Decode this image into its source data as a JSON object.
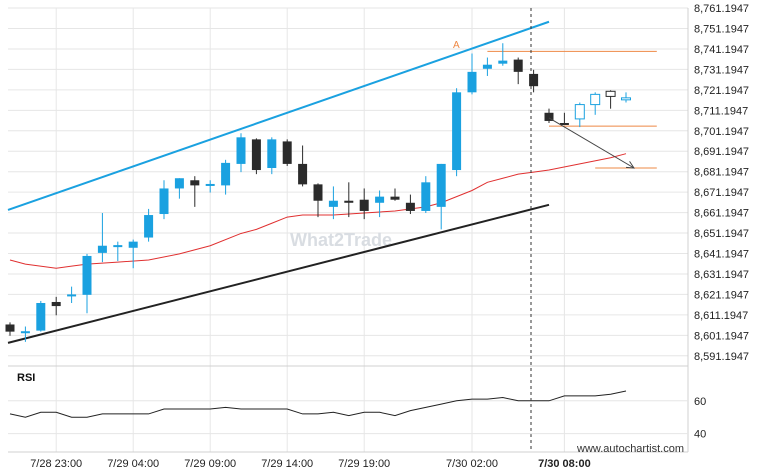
{
  "watermark": "What2Trade",
  "source": "www.autochartist.com",
  "rsi_label": "RSI",
  "colors": {
    "bull": "#1aa1e0",
    "bear": "#2b2b2b",
    "channel_upper": "#1aa1e0",
    "channel_lower": "#222222",
    "moving_average": "#e03030",
    "level_lines": "#ee8844",
    "forecast_arrow": "#444444",
    "rsi_line": "#222222",
    "grid": "#e6e6e6"
  },
  "chart_data": {
    "type": "candlestick",
    "y_ticks": [
      "8,761.1947",
      "8,751.1947",
      "8,741.1947",
      "8,731.1947",
      "8,721.1947",
      "8,711.1947",
      "8,701.1947",
      "8,691.1947",
      "8,681.1947",
      "8,671.1947",
      "8,661.1947",
      "8,651.1947",
      "8,641.1947",
      "8,631.1947",
      "8,621.1947",
      "8,611.1947",
      "8,601.1947",
      "8,591.1947"
    ],
    "x_ticks": [
      "7/28 23:00",
      "7/29 04:00",
      "7/29 09:00",
      "7/29 14:00",
      "7/29 19:00",
      "7/30 02:00",
      "7/30 08:00"
    ],
    "ylim": [
      8586.2,
      8762.2
    ],
    "pattern_marker": "A",
    "candles": [
      {
        "t": "7/28 20:00",
        "o": 8606.5,
        "h": 8607.5,
        "l": 8601.0,
        "c": 8603.0
      },
      {
        "t": "7/28 21:00",
        "o": 8603.0,
        "h": 8605.5,
        "l": 8598.0,
        "c": 8603.2
      },
      {
        "t": "7/28 22:00",
        "o": 8603.5,
        "h": 8618.0,
        "l": 8603.0,
        "c": 8617.0
      },
      {
        "t": "7/28 23:00",
        "o": 8617.5,
        "h": 8620.0,
        "l": 8611.0,
        "c": 8615.5
      },
      {
        "t": "7/29 00:00",
        "o": 8621.0,
        "h": 8625.0,
        "l": 8617.0,
        "c": 8621.2
      },
      {
        "t": "7/29 01:00",
        "o": 8621.0,
        "h": 8641.0,
        "l": 8612.0,
        "c": 8640.0
      },
      {
        "t": "7/29 02:00",
        "o": 8641.5,
        "h": 8661.0,
        "l": 8637.0,
        "c": 8645.0
      },
      {
        "t": "7/29 03:00",
        "o": 8645.0,
        "h": 8647.0,
        "l": 8637.5,
        "c": 8645.3
      },
      {
        "t": "7/29 04:00",
        "o": 8644.0,
        "h": 8648.0,
        "l": 8634.0,
        "c": 8647.0
      },
      {
        "t": "7/29 05:00",
        "o": 8649.0,
        "h": 8663.0,
        "l": 8647.0,
        "c": 8660.0
      },
      {
        "t": "7/29 06:00",
        "o": 8660.5,
        "h": 8677.0,
        "l": 8658.0,
        "c": 8673.0
      },
      {
        "t": "7/29 07:00",
        "o": 8673.0,
        "h": 8678.0,
        "l": 8668.0,
        "c": 8678.0
      },
      {
        "t": "7/29 08:00",
        "o": 8677.0,
        "h": 8679.0,
        "l": 8664.0,
        "c": 8674.5
      },
      {
        "t": "7/29 09:00",
        "o": 8675.0,
        "h": 8677.0,
        "l": 8671.0,
        "c": 8675.2
      },
      {
        "t": "7/29 10:00",
        "o": 8674.5,
        "h": 8687.0,
        "l": 8670.0,
        "c": 8685.5
      },
      {
        "t": "7/29 11:00",
        "o": 8685.0,
        "h": 8700.0,
        "l": 8681.0,
        "c": 8698.0
      },
      {
        "t": "7/29 12:00",
        "o": 8697.0,
        "h": 8697.5,
        "l": 8680.0,
        "c": 8682.0
      },
      {
        "t": "7/29 13:00",
        "o": 8683.0,
        "h": 8698.0,
        "l": 8680.0,
        "c": 8697.0
      },
      {
        "t": "7/29 14:00",
        "o": 8696.0,
        "h": 8697.0,
        "l": 8684.0,
        "c": 8685.0
      },
      {
        "t": "7/29 15:00",
        "o": 8685.0,
        "h": 8694.0,
        "l": 8674.0,
        "c": 8675.0
      },
      {
        "t": "7/29 16:00",
        "o": 8675.0,
        "h": 8675.5,
        "l": 8659.0,
        "c": 8667.0
      },
      {
        "t": "7/29 17:00",
        "o": 8664.0,
        "h": 8674.0,
        "l": 8658.0,
        "c": 8667.0
      },
      {
        "t": "7/29 18:00",
        "o": 8667.0,
        "h": 8676.0,
        "l": 8659.0,
        "c": 8666.0
      },
      {
        "t": "7/29 19:00",
        "o": 8667.5,
        "h": 8673.0,
        "l": 8658.0,
        "c": 8662.0
      },
      {
        "t": "7/29 20:00",
        "o": 8666.0,
        "h": 8672.0,
        "l": 8659.0,
        "c": 8669.0
      },
      {
        "t": "7/29 21:00",
        "o": 8669.0,
        "h": 8673.0,
        "l": 8667.0,
        "c": 8667.5
      },
      {
        "t": "7/29 22:00",
        "o": 8666.0,
        "h": 8670.0,
        "l": 8660.5,
        "c": 8662.0
      },
      {
        "t": "7/29 23:00",
        "o": 8662.0,
        "h": 8679.0,
        "l": 8661.0,
        "c": 8676.0
      },
      {
        "t": "7/30 00:00",
        "o": 8664.0,
        "h": 8685.0,
        "l": 8653.0,
        "c": 8685.0
      },
      {
        "t": "7/30 01:00",
        "o": 8682.0,
        "h": 8722.0,
        "l": 8679.0,
        "c": 8720.0
      },
      {
        "t": "7/30 02:00",
        "o": 8720.0,
        "h": 8739.0,
        "l": 8719.0,
        "c": 8730.0
      },
      {
        "t": "7/30 03:00",
        "o": 8731.5,
        "h": 8737.0,
        "l": 8728.0,
        "c": 8733.5
      },
      {
        "t": "7/30 04:00",
        "o": 8734.0,
        "h": 8744.0,
        "l": 8733.0,
        "c": 8735.5
      },
      {
        "t": "7/30 05:00",
        "o": 8736.0,
        "h": 8737.0,
        "l": 8724.0,
        "c": 8730.0
      },
      {
        "t": "7/30 06:00",
        "o": 8729.0,
        "h": 8731.0,
        "l": 8720.0,
        "c": 8723.0
      },
      {
        "t": "7/30 07:00",
        "o": 8710.0,
        "h": 8712.0,
        "l": 8705.0,
        "c": 8706.0
      },
      {
        "t": "7/30 08:00",
        "o": 8705.0,
        "h": 8710.0,
        "l": 8704.0,
        "c": 8704.5
      },
      {
        "t": "7/30 09:00",
        "o": 8707.0,
        "h": 8715.0,
        "l": 8703.0,
        "c": 8714.0
      },
      {
        "t": "7/30 10:00",
        "o": 8714.0,
        "h": 8720.0,
        "l": 8709.0,
        "c": 8719.0
      },
      {
        "t": "7/30 11:00",
        "o": 8720.5,
        "h": 8721.0,
        "l": 8712.0,
        "c": 8718.0
      },
      {
        "t": "7/30 12:00",
        "o": 8717.0,
        "h": 8720.0,
        "l": 8715.0,
        "c": 8717.3
      }
    ],
    "moving_average": [
      [
        "7/28 20:00",
        8638
      ],
      [
        "7/28 21:00",
        8636
      ],
      [
        "7/28 23:00",
        8634
      ],
      [
        "7/29 00:00",
        8635
      ],
      [
        "7/29 01:00",
        8636
      ],
      [
        "7/29 03:00",
        8637
      ],
      [
        "7/29 05:00",
        8638
      ],
      [
        "7/29 07:00",
        8641
      ],
      [
        "7/29 09:00",
        8645
      ],
      [
        "7/29 11:00",
        8651
      ],
      [
        "7/29 12:00",
        8653
      ],
      [
        "7/29 13:00",
        8656
      ],
      [
        "7/29 14:00",
        8659
      ],
      [
        "7/29 15:00",
        8660
      ],
      [
        "7/29 17:00",
        8660
      ],
      [
        "7/29 19:00",
        8661
      ],
      [
        "7/29 21:00",
        8662
      ],
      [
        "7/29 23:00",
        8664
      ],
      [
        "7/30 00:00",
        8666
      ],
      [
        "7/30 01:00",
        8669
      ],
      [
        "7/30 02:00",
        8672
      ],
      [
        "7/30 03:00",
        8676
      ],
      [
        "7/30 04:00",
        8678
      ],
      [
        "7/30 05:00",
        8680
      ],
      [
        "7/30 06:00",
        8681
      ],
      [
        "7/30 07:00",
        8682
      ],
      [
        "7/30 09:00",
        8685
      ],
      [
        "7/30 11:00",
        8688
      ],
      [
        "7/30 12:00",
        8690
      ]
    ],
    "channel_upper": [
      [
        "7/28 20:00",
        8662.5
      ],
      [
        "7/30 07:00",
        8754.5
      ]
    ],
    "channel_lower": [
      [
        "7/28 20:00",
        8597.5
      ],
      [
        "7/30 07:00",
        8665.0
      ]
    ],
    "forecast_arrow": [
      [
        "7/30 07:00",
        8707.5
      ],
      [
        "7/30 12:00",
        8683.0
      ]
    ],
    "level_lines": [
      {
        "price": 8740.0,
        "from": "7/30 03:00",
        "to": "7/30 14:00"
      },
      {
        "price": 8703.5,
        "from": "7/30 07:00",
        "to": "7/30 14:00"
      },
      {
        "price": 8683.0,
        "from": "7/30 10:00",
        "to": "7/30 14:00"
      }
    ],
    "rsi": {
      "ticks": [
        "60",
        "40"
      ],
      "ylim": [
        30,
        80
      ],
      "values": [
        [
          "7/28 20:00",
          52
        ],
        [
          "7/28 21:00",
          50
        ],
        [
          "7/28 22:00",
          53
        ],
        [
          "7/28 23:00",
          53
        ],
        [
          "7/29 00:00",
          50
        ],
        [
          "7/29 01:00",
          50
        ],
        [
          "7/29 02:00",
          52
        ],
        [
          "7/29 03:00",
          52
        ],
        [
          "7/29 04:00",
          52
        ],
        [
          "7/29 05:00",
          52
        ],
        [
          "7/29 06:00",
          55
        ],
        [
          "7/29 07:00",
          55
        ],
        [
          "7/29 08:00",
          55
        ],
        [
          "7/29 09:00",
          55
        ],
        [
          "7/29 10:00",
          56
        ],
        [
          "7/29 11:00",
          55
        ],
        [
          "7/29 12:00",
          55
        ],
        [
          "7/29 13:00",
          55
        ],
        [
          "7/29 14:00",
          55
        ],
        [
          "7/29 15:00",
          52
        ],
        [
          "7/29 16:00",
          52
        ],
        [
          "7/29 17:00",
          53
        ],
        [
          "7/29 18:00",
          51
        ],
        [
          "7/29 19:00",
          53
        ],
        [
          "7/29 20:00",
          53
        ],
        [
          "7/29 21:00",
          51
        ],
        [
          "7/29 22:00",
          54
        ],
        [
          "7/29 23:00",
          56
        ],
        [
          "7/30 00:00",
          58
        ],
        [
          "7/30 01:00",
          60
        ],
        [
          "7/30 02:00",
          61
        ],
        [
          "7/30 03:00",
          61
        ],
        [
          "7/30 04:00",
          62
        ],
        [
          "7/30 05:00",
          60
        ],
        [
          "7/30 06:00",
          60
        ],
        [
          "7/30 07:00",
          60
        ],
        [
          "7/30 08:00",
          63
        ],
        [
          "7/30 09:00",
          63
        ],
        [
          "7/30 10:00",
          63
        ],
        [
          "7/30 11:00",
          64
        ],
        [
          "7/30 12:00",
          66
        ]
      ]
    }
  }
}
